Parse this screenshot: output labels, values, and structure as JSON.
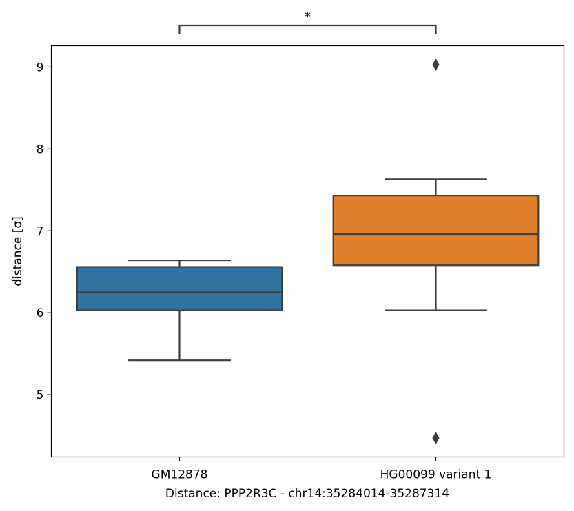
{
  "chart_data": {
    "type": "box",
    "title": "",
    "xlabel": "Distance:  PPP2R3C - chr14:35284014-35287314",
    "ylabel": "distance [σ]",
    "ylim": [
      4.24,
      9.26
    ],
    "yticks": [
      5,
      6,
      7,
      8,
      9
    ],
    "grid": false,
    "categories": [
      "GM12878",
      "HG00099 variant 1"
    ],
    "boxes": [
      {
        "category": "GM12878",
        "color": "#3274a1",
        "whisker_low": 5.42,
        "q1": 6.03,
        "median": 6.25,
        "q3": 6.56,
        "whisker_high": 6.64,
        "outliers": []
      },
      {
        "category": "HG00099 variant 1",
        "color": "#e1812c",
        "whisker_low": 6.03,
        "q1": 6.58,
        "median": 6.96,
        "q3": 7.43,
        "whisker_high": 7.63,
        "outliers": [
          9.03,
          4.47
        ]
      }
    ],
    "annotation": {
      "text": "*",
      "from": "GM12878",
      "to": "HG00099 variant 1"
    }
  }
}
